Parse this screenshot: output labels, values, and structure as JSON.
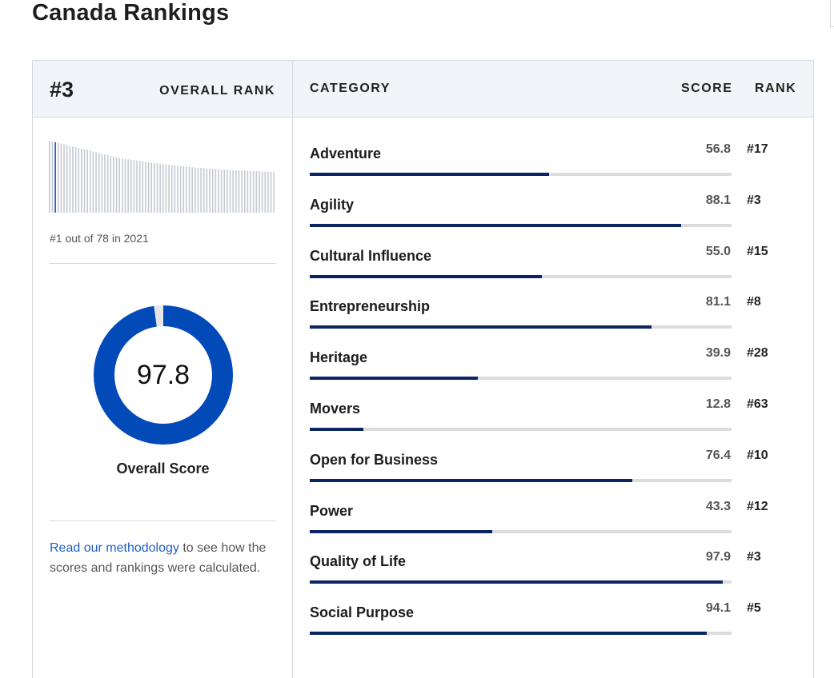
{
  "page": {
    "title": "Canada Rankings"
  },
  "overall": {
    "rank": "#3",
    "rank_label": "OVERALL RANK",
    "out_of_text": "#1 out of 78 in 2021",
    "score": "97.8",
    "score_fraction": 0.978,
    "score_label": "Overall Score"
  },
  "methodology": {
    "link_text": "Read our methodology",
    "rest_text": " to see how the scores and rankings were calculated."
  },
  "table": {
    "headers": {
      "category": "CATEGORY",
      "score": "SCORE",
      "rank": "RANK"
    },
    "rows": [
      {
        "category": "Adventure",
        "score": "56.8",
        "rank": "#17",
        "fraction": 0.568
      },
      {
        "category": "Agility",
        "score": "88.1",
        "rank": "#3",
        "fraction": 0.881
      },
      {
        "category": "Cultural Influence",
        "score": "55.0",
        "rank": "#15",
        "fraction": 0.55
      },
      {
        "category": "Entrepreneurship",
        "score": "81.1",
        "rank": "#8",
        "fraction": 0.811
      },
      {
        "category": "Heritage",
        "score": "39.9",
        "rank": "#28",
        "fraction": 0.399
      },
      {
        "category": "Movers",
        "score": "12.8",
        "rank": "#63",
        "fraction": 0.128
      },
      {
        "category": "Open for Business",
        "score": "76.4",
        "rank": "#10",
        "fraction": 0.764
      },
      {
        "category": "Power",
        "score": "43.3",
        "rank": "#12",
        "fraction": 0.433
      },
      {
        "category": "Quality of Life",
        "score": "97.9",
        "rank": "#3",
        "fraction": 0.979
      },
      {
        "category": "Social Purpose",
        "score": "94.1",
        "rank": "#5",
        "fraction": 0.941
      }
    ]
  },
  "colors": {
    "bar_fill": "#0b2463",
    "bar_track": "#dcdcdc",
    "donut_fill": "#034ab9",
    "donut_track": "#e4e6ea",
    "mini_bar": "#c6cbd3",
    "mini_bar_highlight": "#1f4fbf",
    "link": "#1f5fc8",
    "header_bg": "#f1f4f8"
  },
  "chart_data": {
    "type": "bar",
    "title": "",
    "xlabel": "",
    "ylabel": "",
    "highlight_rank": 1,
    "categories_count": 78,
    "values": [
      100,
      99,
      98,
      97,
      96,
      95,
      94,
      93,
      92,
      91,
      90,
      89,
      88,
      87,
      86,
      85,
      84,
      83,
      82,
      81,
      80,
      79,
      78,
      77,
      76,
      75.4,
      74.8,
      74.2,
      73.6,
      73.0,
      72.4,
      71.8,
      71.2,
      70.6,
      70.0,
      69.5,
      69.0,
      68.5,
      68.0,
      67.5,
      67.0,
      66.5,
      66.0,
      65.6,
      65.2,
      64.8,
      64.4,
      64.0,
      63.6,
      63.2,
      62.8,
      62.5,
      62.2,
      61.9,
      61.6,
      61.3,
      61.0,
      60.7,
      60.4,
      60.1,
      59.8,
      59.6,
      59.4,
      59.2,
      59.0,
      58.8,
      58.6,
      58.4,
      58.2,
      58.0,
      57.8,
      57.6,
      57.4,
      57.2,
      57.0,
      56.8,
      56.6,
      56.4
    ],
    "ylim": [
      0,
      100
    ]
  }
}
